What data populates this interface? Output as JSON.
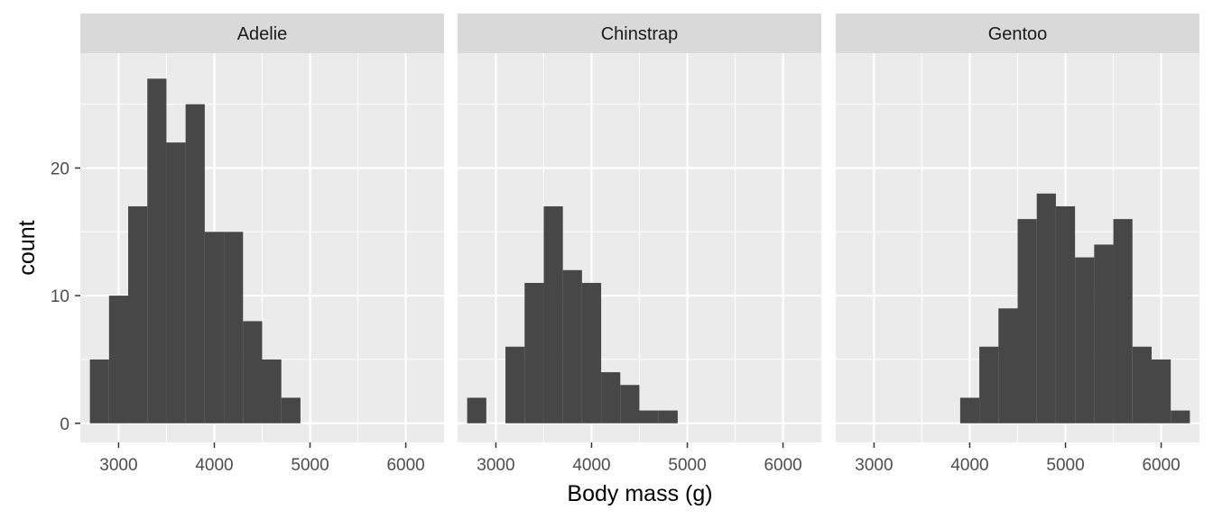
{
  "chart_data": {
    "type": "histogram",
    "facet_by": "species",
    "xlabel": "Body mass (g)",
    "ylabel": "count",
    "xlim": [
      2600,
      6400
    ],
    "ylim": [
      -1.5,
      29
    ],
    "x_ticks": [
      3000,
      4000,
      5000,
      6000
    ],
    "x_tick_labels": [
      "3000",
      "4000",
      "5000",
      "6000"
    ],
    "y_ticks": [
      0,
      10,
      20
    ],
    "y_tick_labels": [
      "0",
      "10",
      "20"
    ],
    "bin_width": 200,
    "grid": true,
    "bar_color": "#474747",
    "panel_background": "#ebebeb",
    "strip_background": "#d9d9d9",
    "panels": [
      {
        "label": "Adelie",
        "bins": [
          {
            "x0": 2700,
            "x1": 2900,
            "count": 5
          },
          {
            "x0": 2900,
            "x1": 3100,
            "count": 10
          },
          {
            "x0": 3100,
            "x1": 3300,
            "count": 17
          },
          {
            "x0": 3300,
            "x1": 3500,
            "count": 27
          },
          {
            "x0": 3500,
            "x1": 3700,
            "count": 22
          },
          {
            "x0": 3700,
            "x1": 3900,
            "count": 25
          },
          {
            "x0": 3900,
            "x1": 4100,
            "count": 15
          },
          {
            "x0": 4100,
            "x1": 4300,
            "count": 15
          },
          {
            "x0": 4300,
            "x1": 4500,
            "count": 8
          },
          {
            "x0": 4500,
            "x1": 4700,
            "count": 5
          },
          {
            "x0": 4700,
            "x1": 4900,
            "count": 2
          }
        ]
      },
      {
        "label": "Chinstrap",
        "bins": [
          {
            "x0": 2700,
            "x1": 2900,
            "count": 2
          },
          {
            "x0": 2900,
            "x1": 3100,
            "count": 0
          },
          {
            "x0": 3100,
            "x1": 3300,
            "count": 6
          },
          {
            "x0": 3300,
            "x1": 3500,
            "count": 11
          },
          {
            "x0": 3500,
            "x1": 3700,
            "count": 17
          },
          {
            "x0": 3700,
            "x1": 3900,
            "count": 12
          },
          {
            "x0": 3900,
            "x1": 4100,
            "count": 11
          },
          {
            "x0": 4100,
            "x1": 4300,
            "count": 4
          },
          {
            "x0": 4300,
            "x1": 4500,
            "count": 3
          },
          {
            "x0": 4500,
            "x1": 4700,
            "count": 1
          },
          {
            "x0": 4700,
            "x1": 4900,
            "count": 1
          }
        ]
      },
      {
        "label": "Gentoo",
        "bins": [
          {
            "x0": 3900,
            "x1": 4100,
            "count": 2
          },
          {
            "x0": 4100,
            "x1": 4300,
            "count": 6
          },
          {
            "x0": 4300,
            "x1": 4500,
            "count": 9
          },
          {
            "x0": 4500,
            "x1": 4700,
            "count": 16
          },
          {
            "x0": 4700,
            "x1": 4900,
            "count": 18
          },
          {
            "x0": 4900,
            "x1": 5100,
            "count": 17
          },
          {
            "x0": 5100,
            "x1": 5300,
            "count": 13
          },
          {
            "x0": 5300,
            "x1": 5500,
            "count": 14
          },
          {
            "x0": 5500,
            "x1": 5700,
            "count": 16
          },
          {
            "x0": 5700,
            "x1": 5900,
            "count": 6
          },
          {
            "x0": 5900,
            "x1": 6100,
            "count": 5
          },
          {
            "x0": 6100,
            "x1": 6300,
            "count": 1
          }
        ]
      }
    ]
  }
}
